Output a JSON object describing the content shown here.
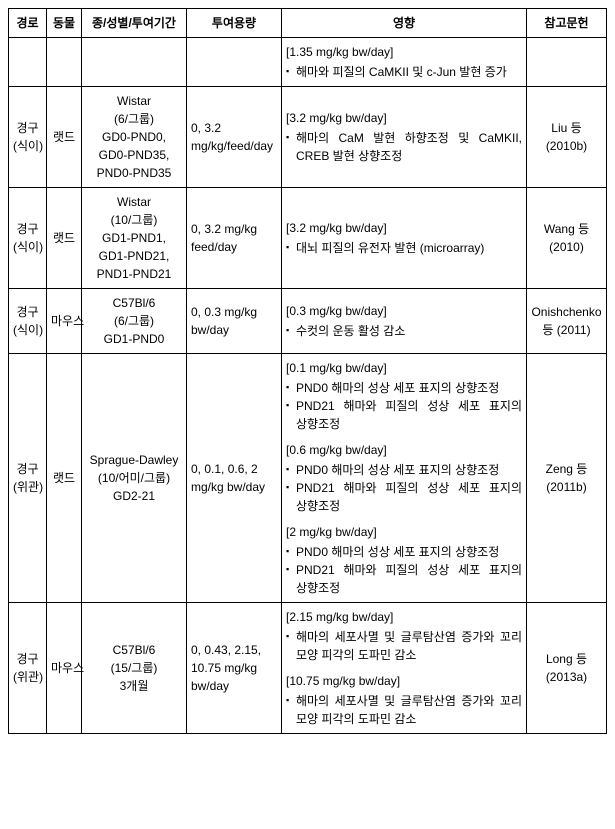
{
  "headers": {
    "route": "경로",
    "animal": "동물",
    "strain": "종/성별/투여기간",
    "dose": "투여용량",
    "effect": "영향",
    "ref": "참고문헌"
  },
  "rows": [
    {
      "route": "",
      "animal": "",
      "strain": "",
      "dose": "",
      "effects": [
        {
          "label": "[1.35 mg/kg bw/day]",
          "items": [
            "해마와 피질의 CaMKII 및 c-Jun 발현 증가"
          ]
        }
      ],
      "ref": ""
    },
    {
      "route": "경구(식이)",
      "animal": "랫드",
      "strain": "Wistar\n(6/그룹)\nGD0-PND0,\nGD0-PND35,\nPND0-PND35",
      "dose": "0, 3.2 mg/kg/feed/day",
      "effects": [
        {
          "label": "[3.2 mg/kg bw/day]",
          "items": [
            "해마의 CaM 발현 하향조정 및 CaMKII, CREB 발현 상향조정"
          ]
        }
      ],
      "ref": "Liu 등 (2010b)"
    },
    {
      "route": "경구(식이)",
      "animal": "랫드",
      "strain": "Wistar\n(10/그룹)\nGD1-PND1,\nGD1-PND21,\nPND1-PND21",
      "dose": "0, 3.2 mg/kg feed/day",
      "effects": [
        {
          "label": "[3.2 mg/kg bw/day]",
          "items": [
            "대뇌 피질의 유전자 발현 (microarray)"
          ]
        }
      ],
      "ref": "Wang 등 (2010)"
    },
    {
      "route": "경구(식이)",
      "animal": "마우스",
      "strain": "C57Bl/6\n(6/그룹)\nGD1-PND0",
      "dose": "0, 0.3 mg/kg bw/day",
      "effects": [
        {
          "label": "[0.3 mg/kg bw/day]",
          "items": [
            "수컷의 운동 활성 감소"
          ]
        }
      ],
      "ref": "Onishchenko 등 (2011)"
    },
    {
      "route": "경구(위관)",
      "animal": "랫드",
      "strain": "Sprague-Dawley\n(10/어미/그룹)\nGD2-21",
      "dose": "0, 0.1, 0.6, 2 mg/kg bw/day",
      "effects": [
        {
          "label": "[0.1 mg/kg bw/day]",
          "items": [
            "PND0 해마의 성상 세포 표지의 상향조정",
            "PND21 해마와 피질의 성상 세포 표지의 상향조정"
          ]
        },
        {
          "label": "[0.6 mg/kg bw/day]",
          "items": [
            "PND0 해마의 성상 세포 표지의 상향조정",
            "PND21 해마와 피질의 성상 세포 표지의 상향조정"
          ]
        },
        {
          "label": "[2 mg/kg bw/day]",
          "items": [
            "PND0 해마의 성상 세포 표지의 상향조정",
            "PND21 해마와 피질의 성상 세포 표지의 상향조정"
          ]
        }
      ],
      "ref": "Zeng 등 (2011b)"
    },
    {
      "route": "경구(위관)",
      "animal": "마우스",
      "strain": "C57Bl/6\n(15/그룹)\n3개월",
      "dose": "0, 0.43, 2.15, 10.75 mg/kg bw/day",
      "effects": [
        {
          "label": "[2.15 mg/kg bw/day]",
          "items": [
            "해마의 세포사멸 및 글루탐산염 증가와 꼬리 모양 피각의 도파민 감소"
          ]
        },
        {
          "label": "[10.75 mg/kg bw/day]",
          "items": [
            "해마의 세포사멸 및 글루탐산염 증가와 꼬리 모양 피각의 도파민 감소"
          ]
        }
      ],
      "ref": "Long 등 (2013a)"
    }
  ]
}
